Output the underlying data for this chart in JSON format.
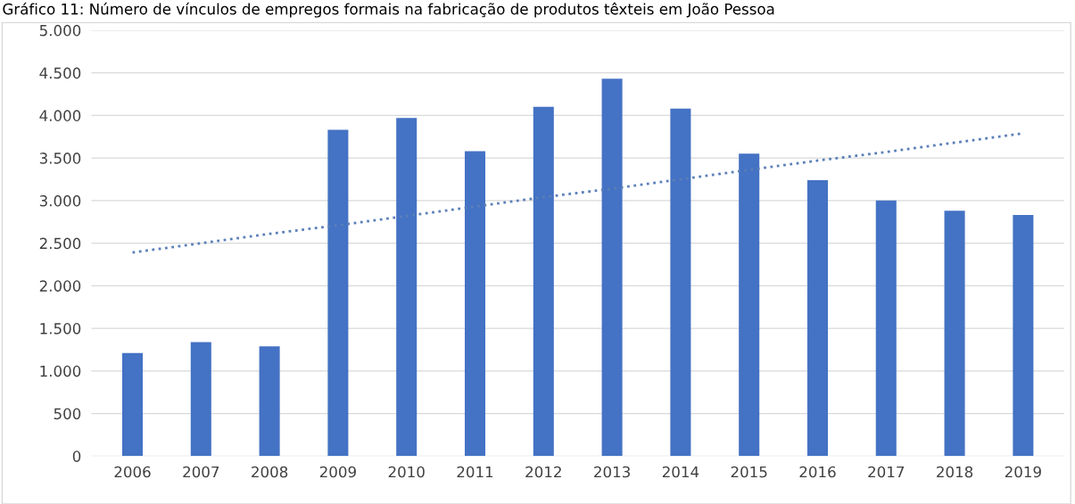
{
  "chart_data": {
    "type": "bar",
    "title": "Gráfico 11: Número de vínculos de empregos formais na fabricação de produtos têxteis em João Pessoa",
    "categories": [
      "2006",
      "2007",
      "2008",
      "2009",
      "2010",
      "2011",
      "2012",
      "2013",
      "2014",
      "2015",
      "2016",
      "2017",
      "2018",
      "2019"
    ],
    "series": [
      {
        "color": "#4472c4",
        "values": [
          1210,
          1340,
          1290,
          3830,
          3970,
          3580,
          4100,
          4430,
          4080,
          3550,
          3240,
          3000,
          2880,
          2830
        ]
      },
      {
        "type": "line",
        "color": "#5b7fb8",
        "line_style": "dotted",
        "values": [
          2390,
          2500,
          2610,
          2710,
          2820,
          2930,
          3040,
          3140,
          3250,
          3360,
          3470,
          3570,
          3680,
          3790
        ]
      }
    ],
    "ylim": [
      0,
      5000
    ],
    "yticks": [
      {
        "value": 0,
        "label": "0"
      },
      {
        "value": 500,
        "label": "500"
      },
      {
        "value": 1000,
        "label": "1.000"
      },
      {
        "value": 1500,
        "label": "1.500"
      },
      {
        "value": 2000,
        "label": "2.000"
      },
      {
        "value": 2500,
        "label": "2.500"
      },
      {
        "value": 3000,
        "label": "3.000"
      },
      {
        "value": 3500,
        "label": "3.500"
      },
      {
        "value": 4000,
        "label": "4.000"
      },
      {
        "value": 4500,
        "label": "4.500"
      },
      {
        "value": 5000,
        "label": "5.000"
      }
    ],
    "grid": "y"
  }
}
